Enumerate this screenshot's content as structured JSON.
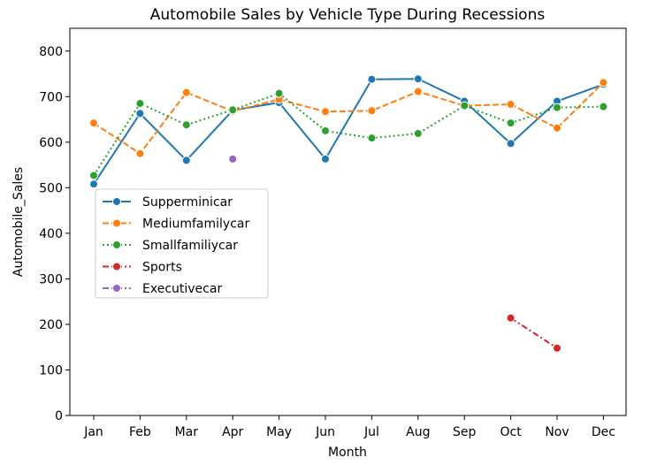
{
  "chart_data": {
    "type": "line",
    "title": "Automobile Sales by Vehicle Type During Recessions",
    "xlabel": "Month",
    "ylabel": "Automobile_Sales",
    "categories": [
      "Jan",
      "Feb",
      "Mar",
      "Apr",
      "May",
      "Jun",
      "Jul",
      "Aug",
      "Sep",
      "Oct",
      "Nov",
      "Dec"
    ],
    "ylim": [
      0,
      850
    ],
    "yticks": [
      0,
      100,
      200,
      300,
      400,
      500,
      600,
      700,
      800
    ],
    "grid": false,
    "legend_position": "center-left",
    "series": [
      {
        "name": "Supperminicar",
        "color": "#1f77b4",
        "linestyle": "solid",
        "values": [
          508,
          663,
          560,
          670,
          687,
          563,
          738,
          739,
          690,
          597,
          690,
          727
        ]
      },
      {
        "name": "Mediumfamilycar",
        "color": "#ff7f0e",
        "linestyle": "dashed",
        "values": [
          642,
          575,
          709,
          668,
          694,
          667,
          669,
          711,
          680,
          683,
          631,
          731
        ]
      },
      {
        "name": "Smallfamiliycar",
        "color": "#2ca02c",
        "linestyle": "dotted",
        "values": [
          527,
          685,
          638,
          671,
          707,
          625,
          609,
          619,
          680,
          642,
          676,
          678
        ]
      },
      {
        "name": "Sports",
        "color": "#d62728",
        "linestyle": "dashdot",
        "values": [
          null,
          null,
          null,
          null,
          null,
          null,
          null,
          null,
          null,
          214,
          148,
          null
        ]
      },
      {
        "name": "Executivecar",
        "color": "#9467bd",
        "linestyle": "dashdot",
        "values": [
          null,
          null,
          null,
          563,
          null,
          null,
          null,
          null,
          null,
          null,
          null,
          null
        ]
      }
    ]
  }
}
